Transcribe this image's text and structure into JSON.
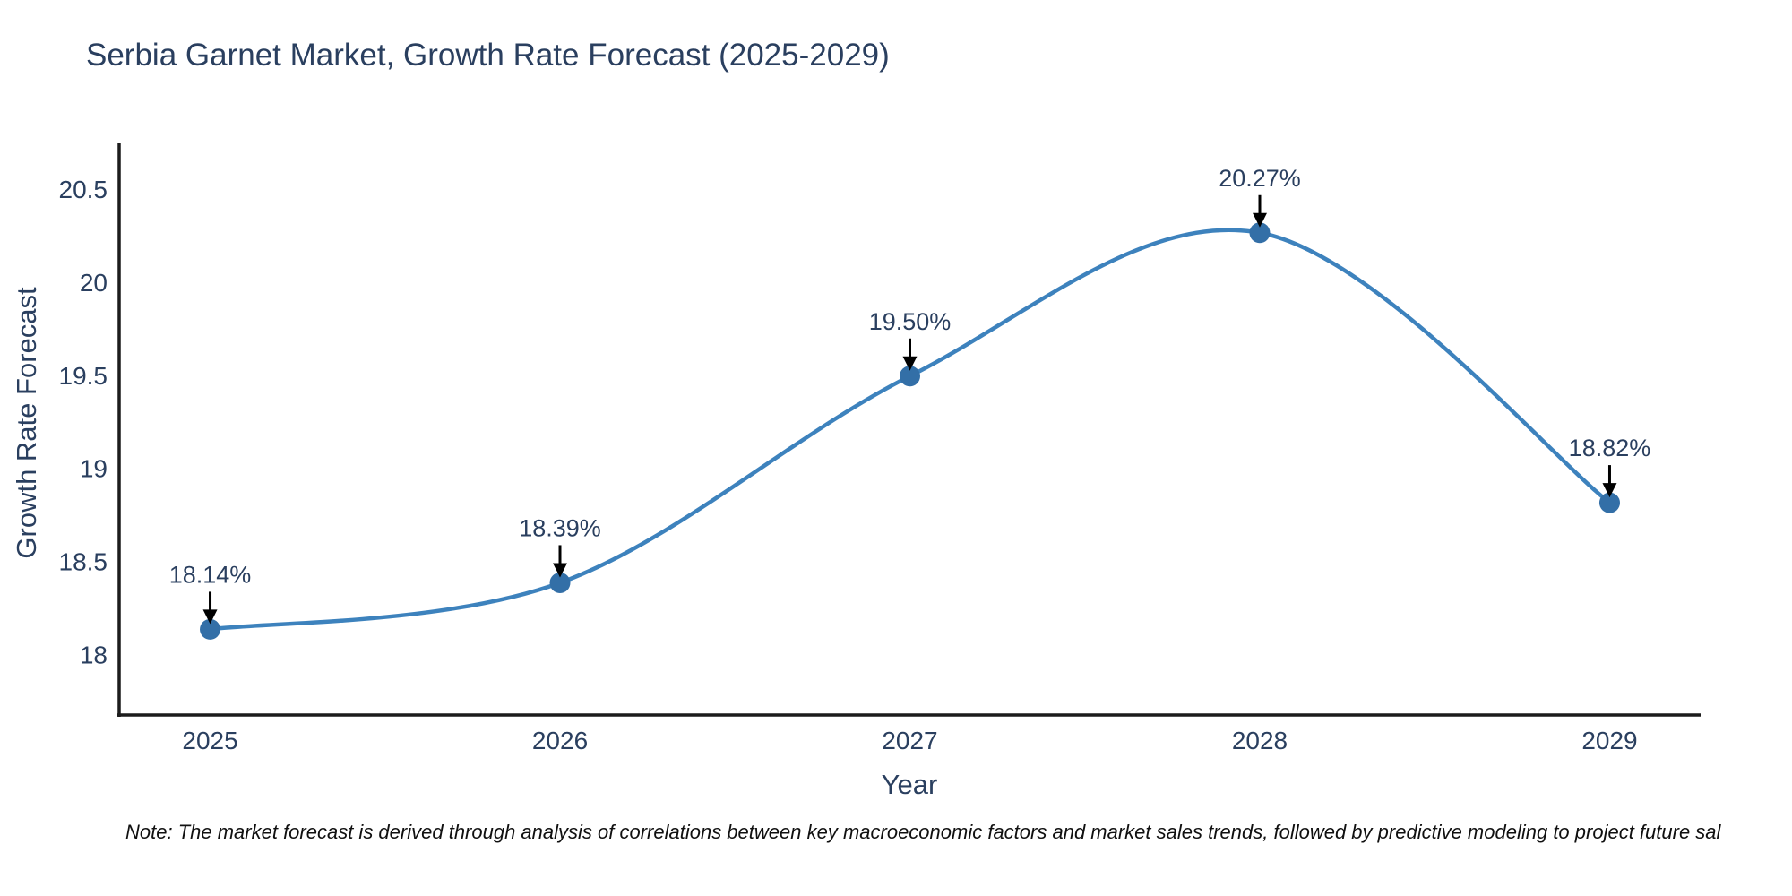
{
  "title": "Serbia Garnet Market, Growth Rate Forecast (2025-2029)",
  "footnote": {
    "text": "Note: The market forecast is derived through analysis of correlations between key macroeconomic factors and market sales trends, followed by predictive modeling to project future sal"
  },
  "chart_data": {
    "type": "line",
    "title": "Serbia Garnet Market, Growth Rate Forecast (2025-2029)",
    "xlabel": "Year",
    "ylabel": "Growth Rate Forecast",
    "x": [
      2025,
      2026,
      2027,
      2028,
      2029
    ],
    "values": [
      18.14,
      18.39,
      19.5,
      20.27,
      18.82
    ],
    "point_labels": [
      "18.14%",
      "18.39%",
      "19.50%",
      "20.27%",
      "18.82%"
    ],
    "xticks": [
      2025,
      2026,
      2027,
      2028,
      2029
    ],
    "xtick_labels": [
      "2025",
      "2026",
      "2027",
      "2028",
      "2029"
    ],
    "yticks": [
      18,
      18.5,
      19,
      19.5,
      20,
      20.5
    ],
    "ytick_labels": [
      "18",
      "18.5",
      "19",
      "19.5",
      "20",
      "20.5"
    ],
    "xlim": [
      2024.74,
      2029.26
    ],
    "ylim": [
      17.68,
      20.75
    ],
    "grid": false,
    "legend": "none",
    "line_shape": "spline",
    "markers": true,
    "annotations_have_arrows": true,
    "colors": {
      "line": "#3d82bd",
      "marker": "#336fa7",
      "axis_line": "#1c1c1c",
      "tick_text": "#2a3f5f",
      "annotation_text": "#2a3f5f",
      "arrow": "#000000",
      "background": "#ffffff"
    }
  }
}
